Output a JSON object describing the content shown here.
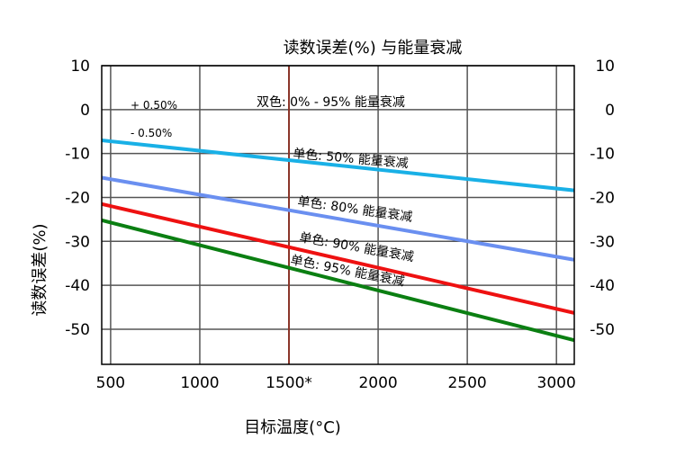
{
  "chart_data": {
    "type": "line",
    "title": "读数误差(%) 与能量衰减",
    "xlabel": "目标温度(°C)",
    "ylabel": "读数误差(%)",
    "xlim": [
      450,
      3100
    ],
    "ylim": [
      -58,
      10
    ],
    "x_ticks": [
      {
        "value": 500,
        "label": "500"
      },
      {
        "value": 1000,
        "label": "1000"
      },
      {
        "value": 1500,
        "label": "1500*"
      },
      {
        "value": 2000,
        "label": "2000"
      },
      {
        "value": 2500,
        "label": "2500"
      },
      {
        "value": 3000,
        "label": "3000"
      }
    ],
    "y_ticks": [
      {
        "value": 10,
        "label": "10"
      },
      {
        "value": 0,
        "label": "0"
      },
      {
        "value": -10,
        "label": "-10"
      },
      {
        "value": -20,
        "label": "-20"
      },
      {
        "value": -30,
        "label": "-30"
      },
      {
        "value": -40,
        "label": "-40"
      },
      {
        "value": -50,
        "label": "-50"
      }
    ],
    "reference_x": 1500,
    "grid": true,
    "series": [
      {
        "name": "双色: 0% - 95% 能量衰减",
        "color": "gradient",
        "x": [
          450,
          3100
        ],
        "y": [
          -1,
          -1
        ]
      },
      {
        "name": "单色: 50% 能量衰减",
        "color": "#19b0e6",
        "x": [
          450,
          3100
        ],
        "y": [
          -7,
          -18.4
        ]
      },
      {
        "name": "单色: 80% 能量衰减",
        "color": "#6a8ff0",
        "x": [
          450,
          3100
        ],
        "y": [
          -15.5,
          -34.2
        ]
      },
      {
        "name": "单色: 90% 能量衰减",
        "color": "#ee1111",
        "x": [
          450,
          3100
        ],
        "y": [
          -21.5,
          -46.3
        ]
      },
      {
        "name": "单色: 95% 能量衰减",
        "color": "#0b7f12",
        "x": [
          450,
          3100
        ],
        "y": [
          -25.2,
          -52.5
        ]
      }
    ],
    "annotations": {
      "plus": "+ 0.50%",
      "minus": "- 0.50%"
    }
  }
}
